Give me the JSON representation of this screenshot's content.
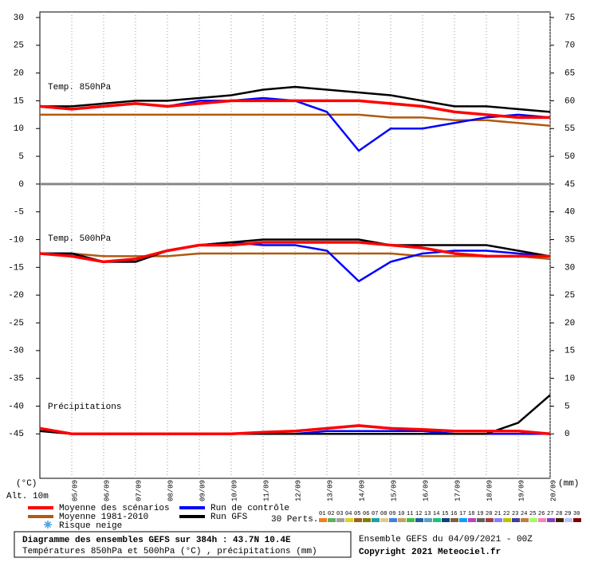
{
  "chart_data": {
    "type": "line",
    "title": "Diagramme des ensembles GEFS sur 384h : 43.7N 10.4E",
    "subtitle": "Températures 850hPa et 500hPa (°C) , précipitations (mm)",
    "run_info": "Ensemble GEFS du 04/09/2021 - 00Z",
    "copyright": "Copyright 2021 Meteociel.fr",
    "ylabel": "(°C)",
    "y2label": "(mm)",
    "altitude": "Alt. 10m",
    "panel_labels": {
      "t850": "Temp. 850hPa",
      "t500": "Temp. 500hPa",
      "precip": "Précipitations"
    },
    "snow_label": "Risque neige",
    "x": [
      0,
      1,
      2,
      3,
      4,
      5,
      6,
      7,
      8,
      9,
      10,
      11,
      12,
      13,
      14,
      15,
      16
    ],
    "xlim": [
      0,
      16
    ],
    "xticks": [
      {
        "value": 1,
        "label": "05/09"
      },
      {
        "value": 2,
        "label": "06/09"
      },
      {
        "value": 3,
        "label": "07/09"
      },
      {
        "value": 4,
        "label": "08/09"
      },
      {
        "value": 5,
        "label": "09/09"
      },
      {
        "value": 6,
        "label": "10/09"
      },
      {
        "value": 7,
        "label": "11/09"
      },
      {
        "value": 8,
        "label": "12/09"
      },
      {
        "value": 9,
        "label": "13/09"
      },
      {
        "value": 10,
        "label": "14/09"
      },
      {
        "value": 11,
        "label": "15/09"
      },
      {
        "value": 12,
        "label": "16/09"
      },
      {
        "value": 13,
        "label": "17/09"
      },
      {
        "value": 14,
        "label": "18/09"
      },
      {
        "value": 15,
        "label": "19/09"
      },
      {
        "value": 16,
        "label": "20/09"
      }
    ],
    "ylim": [
      -53,
      31
    ],
    "yticks": [
      30,
      25,
      20,
      15,
      10,
      5,
      0,
      -5,
      -10,
      -15,
      -20,
      -25,
      -30,
      -35,
      -40,
      -45
    ],
    "y2lim": [
      -8,
      76
    ],
    "y2ticks": [
      75,
      70,
      65,
      60,
      55,
      50,
      45,
      40,
      35,
      30,
      25,
      20,
      15,
      10,
      5,
      0
    ],
    "grid": true,
    "series": [
      {
        "name": "Moyenne des scénarios",
        "color": "#ff0000",
        "t850": [
          14,
          13.5,
          14,
          14.5,
          14,
          14.5,
          15,
          15,
          15,
          15,
          15,
          14.5,
          14,
          13,
          12.5,
          12,
          12
        ],
        "t500": [
          -12.5,
          -13,
          -14,
          -13.5,
          -12,
          -11,
          -11,
          -10.5,
          -10.5,
          -10.5,
          -10.5,
          -11,
          -11.5,
          -12.5,
          -13,
          -13,
          -13
        ],
        "precip": [
          1,
          0,
          0,
          0,
          0,
          0,
          0,
          0.3,
          0.5,
          1,
          1.5,
          1,
          0.8,
          0.5,
          0.5,
          0.5,
          0
        ]
      },
      {
        "name": "Moyenne 1981-2010",
        "color": "#b05a10",
        "t850": [
          12.5,
          12.5,
          12.5,
          12.5,
          12.5,
          12.5,
          12.5,
          12.5,
          12.5,
          12.5,
          12.5,
          12,
          12,
          11.5,
          11.5,
          11,
          10.5
        ],
        "t500": [
          -12.5,
          -12.5,
          -13,
          -13,
          -13,
          -12.5,
          -12.5,
          -12.5,
          -12.5,
          -12.5,
          -12.5,
          -12.5,
          -13,
          -13,
          -13,
          -13,
          -13.5
        ]
      },
      {
        "name": "Run de contrôle",
        "color": "#0000ff",
        "t850": [
          14,
          13.5,
          14,
          14.5,
          14,
          15,
          15,
          15.5,
          15,
          13,
          6,
          10,
          10,
          11,
          12,
          12.5,
          12
        ],
        "t500": [
          -12.5,
          -12.5,
          -14,
          -14,
          -12,
          -11,
          -10.5,
          -11,
          -11,
          -12,
          -17.5,
          -14,
          -12.5,
          -12,
          -12,
          -12.5,
          -13
        ],
        "precip": [
          1,
          0,
          0,
          0,
          0,
          0,
          0,
          0,
          0,
          0.5,
          0.5,
          0.5,
          0.5,
          0,
          0,
          0,
          0
        ]
      },
      {
        "name": "Run GFS",
        "color": "#000000",
        "t850": [
          14,
          14,
          14.5,
          15,
          15,
          15.5,
          16,
          17,
          17.5,
          17,
          16.5,
          16,
          15,
          14,
          14,
          13.5,
          13
        ],
        "t500": [
          -12.5,
          -12.5,
          -14,
          -14,
          -12,
          -11,
          -10.5,
          -10,
          -10,
          -10,
          -10,
          -11,
          -11,
          -11,
          -11,
          -12,
          -13
        ],
        "precip": [
          0.5,
          0,
          0,
          0,
          0,
          0,
          0,
          0,
          0,
          0,
          0,
          0,
          0,
          0,
          0,
          2,
          7
        ]
      }
    ],
    "perturbations": {
      "label": "30 Perts.",
      "ids": [
        "01",
        "02",
        "03",
        "04",
        "05",
        "06",
        "07",
        "08",
        "09",
        "10",
        "11",
        "12",
        "13",
        "14",
        "15",
        "16",
        "17",
        "18",
        "19",
        "20",
        "21",
        "22",
        "23",
        "24",
        "25",
        "26",
        "27",
        "28",
        "29",
        "30"
      ],
      "colors": [
        "#f08020",
        "#60b060",
        "#a0a0a0",
        "#e0d020",
        "#a06020",
        "#808000",
        "#20a0a0",
        "#e0c890",
        "#4080e0",
        "#c8a060",
        "#40c040",
        "#2060a0",
        "#60a0c0",
        "#20c080",
        "#104080",
        "#806040",
        "#00a0ff",
        "#c040c0",
        "#606060",
        "#a04040",
        "#8080ff",
        "#c0c000",
        "#4040a0",
        "#c08040",
        "#a0ff60",
        "#ff80c0",
        "#8040c0",
        "#402000",
        "#c0c0ff",
        "#800000"
      ]
    }
  }
}
